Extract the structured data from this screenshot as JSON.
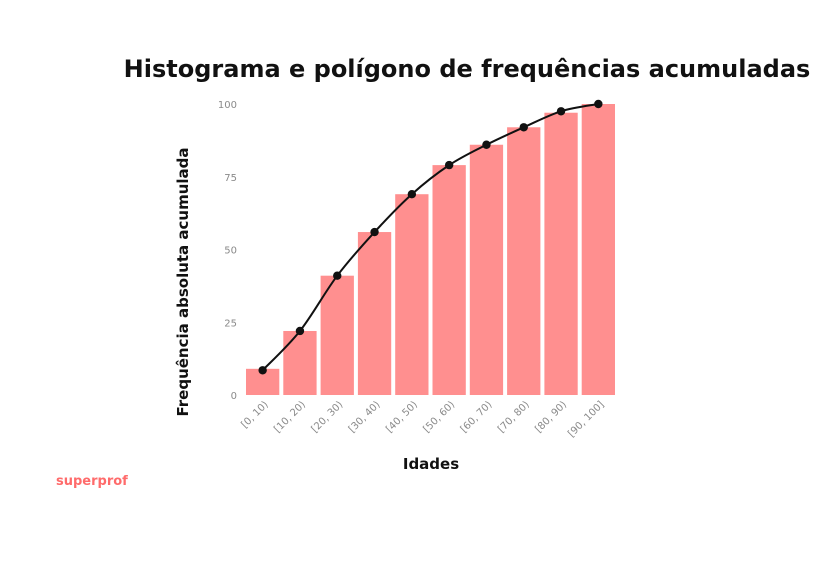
{
  "brand": {
    "text": "superprof",
    "color": "#ff6b6b"
  },
  "chart_data": {
    "type": "bar",
    "title": "Histograma e polígono de frequências acumuladas",
    "xlabel": "Idades",
    "ylabel": "Frequência absoluta acumulada",
    "categories": [
      "[0, 10)",
      "[10, 20)",
      "[20, 30)",
      "[30, 40)",
      "[40, 50)",
      "[50, 60)",
      "[60, 70)",
      "[70, 80)",
      "[80, 90)",
      "[90, 100]"
    ],
    "values": [
      9,
      22,
      41,
      56,
      69,
      79,
      86,
      92,
      97,
      100
    ],
    "line_values": [
      8.5,
      22,
      41,
      56,
      69,
      79,
      86,
      92,
      97.5,
      100
    ],
    "ylim": [
      0,
      100
    ],
    "yticks": [
      0,
      25,
      50,
      75,
      100
    ],
    "grid": false,
    "bar_color": "#ff8f8f",
    "line_color": "#111111"
  }
}
